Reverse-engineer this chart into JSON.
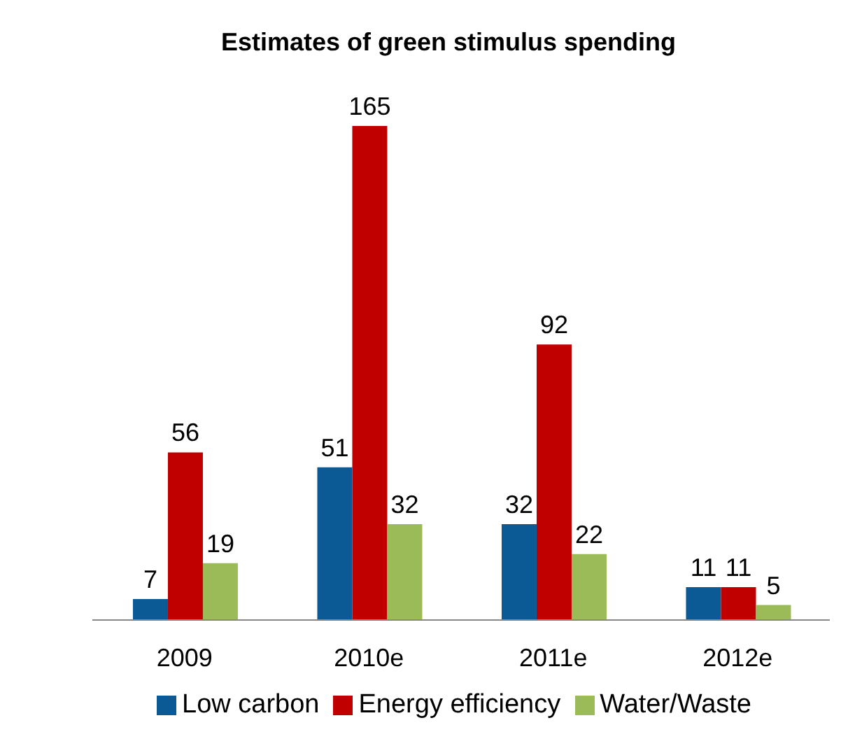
{
  "chart_data": {
    "type": "bar",
    "title": "Estimates of green stimulus spending",
    "categories": [
      "2009",
      "2010e",
      "2011e",
      "2012e"
    ],
    "series": [
      {
        "name": "Low carbon",
        "color": "#0b5a96",
        "values": [
          7,
          51,
          32,
          11
        ]
      },
      {
        "name": "Energy efficiency",
        "color": "#c00000",
        "values": [
          56,
          165,
          92,
          11
        ]
      },
      {
        "name": "Water/Waste",
        "color": "#9bbb59",
        "values": [
          19,
          32,
          22,
          5
        ]
      }
    ],
    "data_labels": true,
    "legend": "bottom",
    "grid": false
  }
}
